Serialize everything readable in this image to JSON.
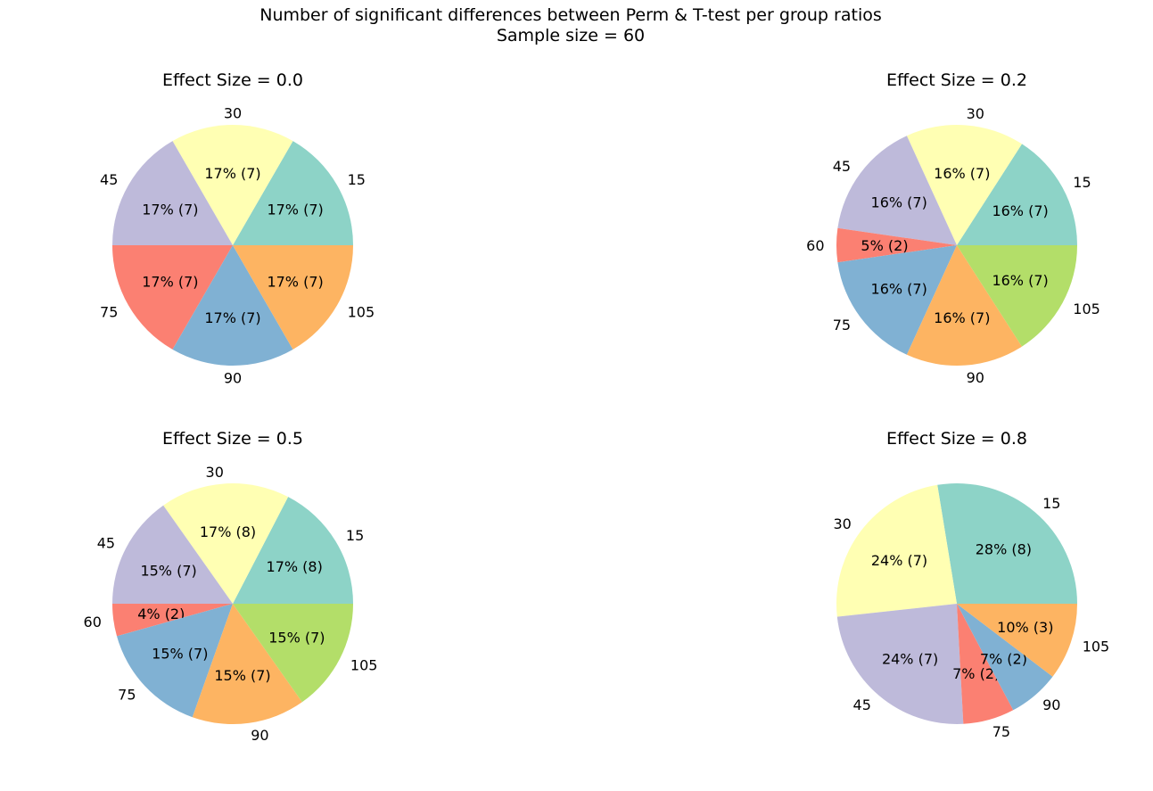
{
  "figure": {
    "title_line1": "Number of significant differences between Perm & T-test per group ratios",
    "title_line2": "Sample size = 60"
  },
  "chart_data": [
    {
      "type": "pie",
      "title": "Effect Size =  0.0",
      "slices": [
        {
          "label": "15",
          "value": 7,
          "pct_label": "17% (7)",
          "color": "#8dd3c7"
        },
        {
          "label": "30",
          "value": 7,
          "pct_label": "17% (7)",
          "color": "#ffffb3"
        },
        {
          "label": "45",
          "value": 7,
          "pct_label": "17% (7)",
          "color": "#bebada"
        },
        {
          "label": "75",
          "value": 7,
          "pct_label": "17% (7)",
          "color": "#fb8072"
        },
        {
          "label": "90",
          "value": 7,
          "pct_label": "17% (7)",
          "color": "#80b1d3"
        },
        {
          "label": "105",
          "value": 7,
          "pct_label": "17% (7)",
          "color": "#fdb462"
        }
      ]
    },
    {
      "type": "pie",
      "title": "Effect Size =  0.2",
      "slices": [
        {
          "label": "15",
          "value": 7,
          "pct_label": "16% (7)",
          "color": "#8dd3c7"
        },
        {
          "label": "30",
          "value": 7,
          "pct_label": "16% (7)",
          "color": "#ffffb3"
        },
        {
          "label": "45",
          "value": 7,
          "pct_label": "16% (7)",
          "color": "#bebada"
        },
        {
          "label": "60",
          "value": 2,
          "pct_label": "5% (2)",
          "color": "#fb8072"
        },
        {
          "label": "75",
          "value": 7,
          "pct_label": "16% (7)",
          "color": "#80b1d3"
        },
        {
          "label": "90",
          "value": 7,
          "pct_label": "16% (7)",
          "color": "#fdb462"
        },
        {
          "label": "105",
          "value": 7,
          "pct_label": "16% (7)",
          "color": "#b3de69"
        }
      ]
    },
    {
      "type": "pie",
      "title": "Effect Size =  0.5",
      "slices": [
        {
          "label": "15",
          "value": 8,
          "pct_label": "17% (8)",
          "color": "#8dd3c7"
        },
        {
          "label": "30",
          "value": 8,
          "pct_label": "17% (8)",
          "color": "#ffffb3"
        },
        {
          "label": "45",
          "value": 7,
          "pct_label": "15% (7)",
          "color": "#bebada"
        },
        {
          "label": "60",
          "value": 2,
          "pct_label": "4% (2)",
          "color": "#fb8072"
        },
        {
          "label": "75",
          "value": 7,
          "pct_label": "15% (7)",
          "color": "#80b1d3"
        },
        {
          "label": "90",
          "value": 7,
          "pct_label": "15% (7)",
          "color": "#fdb462"
        },
        {
          "label": "105",
          "value": 7,
          "pct_label": "15% (7)",
          "color": "#b3de69"
        }
      ]
    },
    {
      "type": "pie",
      "title": "Effect Size =  0.8",
      "slices": [
        {
          "label": "15",
          "value": 8,
          "pct_label": "28% (8)",
          "color": "#8dd3c7"
        },
        {
          "label": "30",
          "value": 7,
          "pct_label": "24% (7)",
          "color": "#ffffb3"
        },
        {
          "label": "45",
          "value": 7,
          "pct_label": "24% (7)",
          "color": "#bebada"
        },
        {
          "label": "75",
          "value": 2,
          "pct_label": "7% (2)",
          "color": "#fb8072"
        },
        {
          "label": "90",
          "value": 2,
          "pct_label": "7% (2)",
          "color": "#80b1d3"
        },
        {
          "label": "105",
          "value": 3,
          "pct_label": "10% (3)",
          "color": "#fdb462"
        }
      ]
    }
  ]
}
